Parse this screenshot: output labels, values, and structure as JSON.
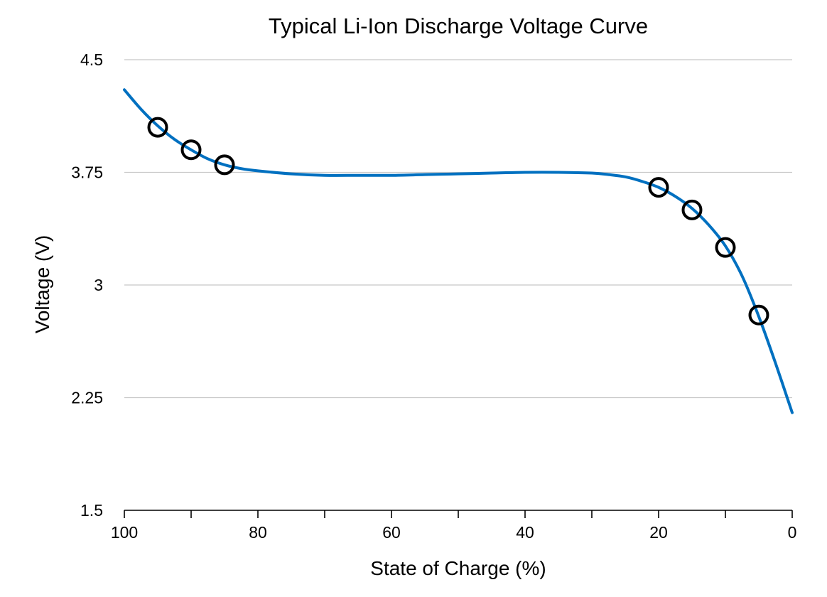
{
  "chart_data": {
    "type": "scatter",
    "title": "Typical Li-Ion Discharge Voltage Curve",
    "xlabel": "State of Charge (%)",
    "ylabel": "Voltage (V)",
    "xlim": [
      100,
      0
    ],
    "ylim": [
      1.5,
      4.5
    ],
    "x_ticks": [
      100,
      80,
      60,
      40,
      20,
      0
    ],
    "x_tick_labels": [
      "100",
      "80",
      "60",
      "40",
      "20",
      "0"
    ],
    "x_minor_step": 10,
    "y_ticks": [
      1.5,
      2.25,
      3,
      3.75,
      4.5
    ],
    "y_tick_labels": [
      "1.5",
      "2.25",
      "3",
      "3.75",
      "4.5"
    ],
    "grid": "horizontal",
    "legend": "none",
    "series": [
      {
        "kind": "points",
        "marker": "open-circle",
        "color": "#000000",
        "points": [
          {
            "x": 95,
            "y": 4.05
          },
          {
            "x": 90,
            "y": 3.9
          },
          {
            "x": 85,
            "y": 3.8
          },
          {
            "x": 20,
            "y": 3.65
          },
          {
            "x": 15,
            "y": 3.5
          },
          {
            "x": 10,
            "y": 3.25
          },
          {
            "x": 5,
            "y": 2.8
          }
        ]
      },
      {
        "kind": "fit-line",
        "color": "#0070c0",
        "points": [
          {
            "x": 100,
            "y": 4.3
          },
          {
            "x": 97.5,
            "y": 4.17
          },
          {
            "x": 95,
            "y": 4.06
          },
          {
            "x": 92.5,
            "y": 3.97
          },
          {
            "x": 90,
            "y": 3.9
          },
          {
            "x": 87.5,
            "y": 3.84
          },
          {
            "x": 85,
            "y": 3.8
          },
          {
            "x": 82.5,
            "y": 3.775
          },
          {
            "x": 80,
            "y": 3.76
          },
          {
            "x": 75,
            "y": 3.74
          },
          {
            "x": 70,
            "y": 3.73
          },
          {
            "x": 65,
            "y": 3.73
          },
          {
            "x": 60,
            "y": 3.73
          },
          {
            "x": 55,
            "y": 3.735
          },
          {
            "x": 50,
            "y": 3.74
          },
          {
            "x": 45,
            "y": 3.745
          },
          {
            "x": 40,
            "y": 3.75
          },
          {
            "x": 35,
            "y": 3.75
          },
          {
            "x": 30,
            "y": 3.745
          },
          {
            "x": 27.5,
            "y": 3.735
          },
          {
            "x": 25,
            "y": 3.72
          },
          {
            "x": 22.5,
            "y": 3.69
          },
          {
            "x": 20,
            "y": 3.65
          },
          {
            "x": 17.5,
            "y": 3.59
          },
          {
            "x": 15,
            "y": 3.51
          },
          {
            "x": 12.5,
            "y": 3.4
          },
          {
            "x": 10,
            "y": 3.26
          },
          {
            "x": 7.5,
            "y": 3.06
          },
          {
            "x": 5,
            "y": 2.79
          },
          {
            "x": 2.5,
            "y": 2.48
          },
          {
            "x": 0,
            "y": 2.15
          }
        ]
      }
    ]
  }
}
